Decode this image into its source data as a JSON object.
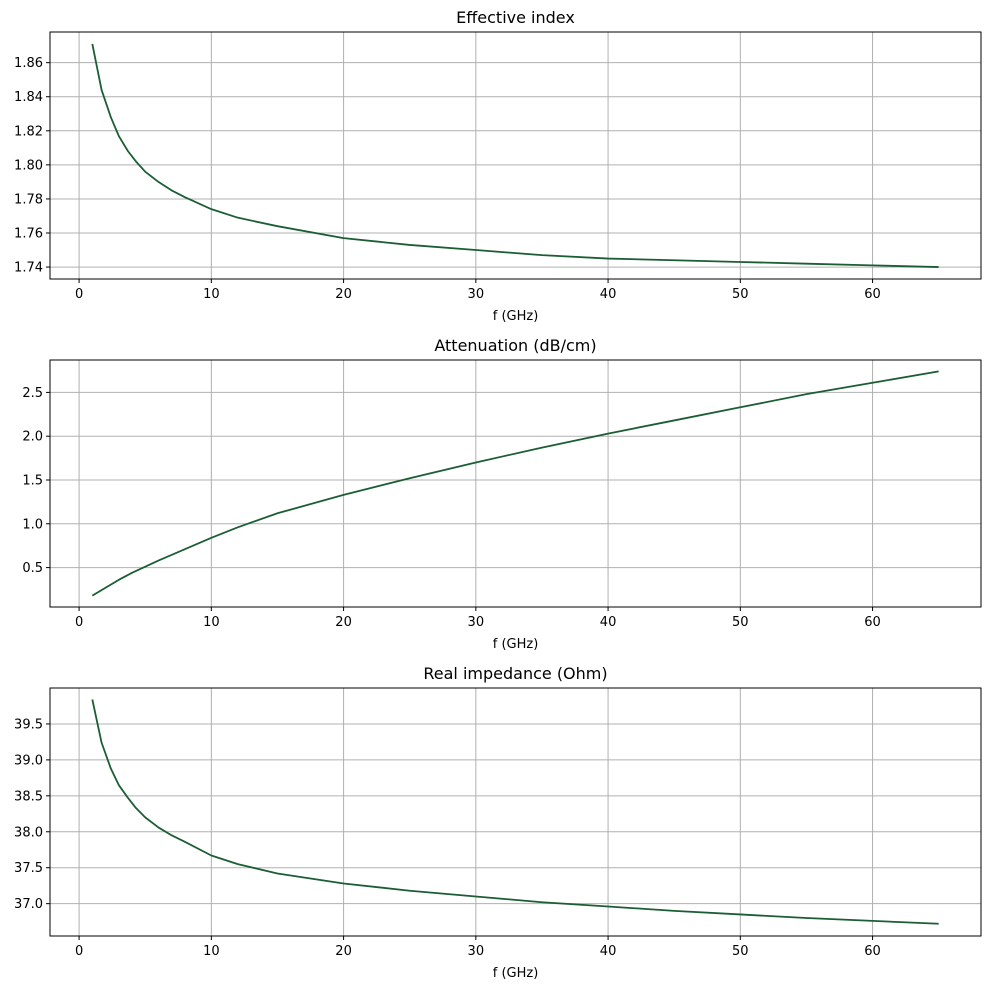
{
  "chart_data": [
    {
      "type": "line",
      "title": "Effective index",
      "xlabel": "f (GHz)",
      "ylabel": "",
      "xlim": [
        -2.2,
        68.2
      ],
      "ylim": [
        1.733,
        1.878
      ],
      "xticks": [
        0,
        10,
        20,
        30,
        40,
        50,
        60
      ],
      "xtick_labels": [
        "0",
        "10",
        "20",
        "30",
        "40",
        "50",
        "60"
      ],
      "yticks": [
        1.74,
        1.76,
        1.78,
        1.8,
        1.82,
        1.84,
        1.86
      ],
      "ytick_labels": [
        "1.74",
        "1.76",
        "1.78",
        "1.80",
        "1.82",
        "1.84",
        "1.86"
      ],
      "grid": true,
      "color": "#1b5e34",
      "series": [
        {
          "x": [
            1,
            1.7,
            2.4,
            3,
            3.7,
            4.3,
            5,
            6,
            7,
            8,
            10,
            12,
            15,
            20,
            25,
            30,
            35,
            40,
            45,
            50,
            55,
            60,
            65
          ],
          "y": [
            1.871,
            1.844,
            1.828,
            1.817,
            1.808,
            1.802,
            1.796,
            1.79,
            1.785,
            1.781,
            1.774,
            1.769,
            1.764,
            1.757,
            1.753,
            1.75,
            1.747,
            1.745,
            1.744,
            1.743,
            1.742,
            1.741,
            1.74
          ]
        }
      ]
    },
    {
      "type": "line",
      "title": "Attenuation (dB/cm)",
      "xlabel": "f (GHz)",
      "ylabel": "",
      "xlim": [
        -2.2,
        68.2
      ],
      "ylim": [
        0.05,
        2.87
      ],
      "xticks": [
        0,
        10,
        20,
        30,
        40,
        50,
        60
      ],
      "xtick_labels": [
        "0",
        "10",
        "20",
        "30",
        "40",
        "50",
        "60"
      ],
      "yticks": [
        0.5,
        1.0,
        1.5,
        2.0,
        2.5
      ],
      "ytick_labels": [
        "0.5",
        "1.0",
        "1.5",
        "2.0",
        "2.5"
      ],
      "grid": true,
      "color": "#1b5e34",
      "series": [
        {
          "x": [
            1,
            2,
            3,
            4,
            5,
            6,
            8,
            10,
            12,
            15,
            20,
            25,
            30,
            35,
            40,
            45,
            50,
            55,
            60,
            65
          ],
          "y": [
            0.18,
            0.27,
            0.36,
            0.44,
            0.51,
            0.58,
            0.71,
            0.84,
            0.96,
            1.12,
            1.33,
            1.52,
            1.7,
            1.87,
            2.03,
            2.18,
            2.33,
            2.48,
            2.61,
            2.74
          ]
        }
      ]
    },
    {
      "type": "line",
      "title": "Real impedance (Ohm)",
      "xlabel": "f (GHz)",
      "ylabel": "",
      "xlim": [
        -2.2,
        68.2
      ],
      "ylim": [
        36.55,
        40.0
      ],
      "xticks": [
        0,
        10,
        20,
        30,
        40,
        50,
        60
      ],
      "xtick_labels": [
        "0",
        "10",
        "20",
        "30",
        "40",
        "50",
        "60"
      ],
      "yticks": [
        37.0,
        37.5,
        38.0,
        38.5,
        39.0,
        39.5
      ],
      "ytick_labels": [
        "37.0",
        "37.5",
        "38.0",
        "38.5",
        "39.0",
        "39.5"
      ],
      "grid": true,
      "color": "#1b5e34",
      "series": [
        {
          "x": [
            1,
            1.7,
            2.4,
            3,
            3.7,
            4.3,
            5,
            6,
            7,
            8,
            10,
            12,
            15,
            20,
            25,
            30,
            35,
            40,
            45,
            50,
            55,
            60,
            65
          ],
          "y": [
            39.84,
            39.24,
            38.88,
            38.65,
            38.47,
            38.33,
            38.2,
            38.06,
            37.95,
            37.86,
            37.67,
            37.55,
            37.42,
            37.28,
            37.18,
            37.1,
            37.02,
            36.96,
            36.9,
            36.85,
            36.8,
            36.76,
            36.72
          ]
        }
      ]
    }
  ]
}
